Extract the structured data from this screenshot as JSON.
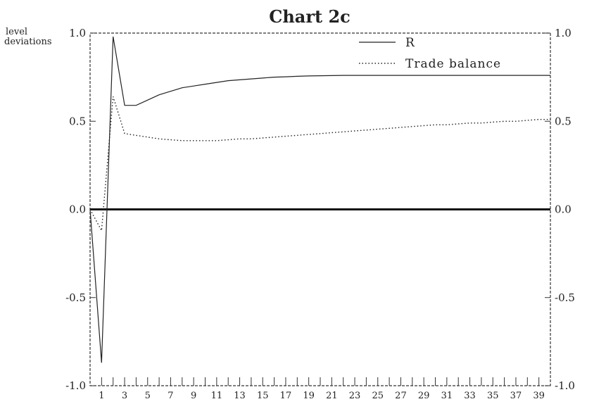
{
  "chart_data": {
    "type": "line",
    "title": "Chart 2c",
    "ylabel_lines": [
      "level",
      "deviations"
    ],
    "x": [
      0,
      1,
      2,
      3,
      4,
      5,
      6,
      7,
      8,
      9,
      10,
      11,
      12,
      13,
      14,
      15,
      16,
      17,
      18,
      19,
      20,
      21,
      22,
      23,
      24,
      25,
      26,
      27,
      28,
      29,
      30,
      31,
      32,
      33,
      34,
      35,
      36,
      37,
      38,
      39,
      40
    ],
    "x_tick_labels": [
      "1",
      "3",
      "5",
      "7",
      "9",
      "11",
      "13",
      "15",
      "17",
      "19",
      "21",
      "23",
      "25",
      "27",
      "29",
      "31",
      "33",
      "35",
      "37",
      "39"
    ],
    "xlim": [
      0,
      40
    ],
    "ylim": [
      -1.0,
      1.0
    ],
    "y_ticks_left": [
      "1.0",
      "0.5",
      "0.0",
      "-0.5",
      "-1.0"
    ],
    "y_ticks_right": [
      "1.0",
      "0.5",
      "0.0",
      "-0.5",
      "-1.0"
    ],
    "zero_line": true,
    "legend_position": "top-right",
    "series": [
      {
        "name": "R",
        "style": "solid",
        "values": [
          0.0,
          -0.87,
          0.98,
          0.59,
          0.59,
          0.62,
          0.65,
          0.67,
          0.69,
          0.7,
          0.71,
          0.72,
          0.73,
          0.735,
          0.74,
          0.745,
          0.75,
          0.752,
          0.755,
          0.757,
          0.758,
          0.759,
          0.76,
          0.76,
          0.76,
          0.76,
          0.76,
          0.76,
          0.76,
          0.76,
          0.76,
          0.76,
          0.76,
          0.76,
          0.76,
          0.76,
          0.76,
          0.76,
          0.76,
          0.76,
          0.76
        ]
      },
      {
        "name": "Trade balance",
        "style": "dotted",
        "values": [
          0.0,
          -0.12,
          0.64,
          0.43,
          0.42,
          0.41,
          0.4,
          0.395,
          0.39,
          0.39,
          0.39,
          0.39,
          0.395,
          0.4,
          0.4,
          0.405,
          0.41,
          0.415,
          0.42,
          0.425,
          0.43,
          0.435,
          0.44,
          0.445,
          0.45,
          0.455,
          0.46,
          0.465,
          0.47,
          0.475,
          0.48,
          0.48,
          0.485,
          0.49,
          0.49,
          0.495,
          0.5,
          0.5,
          0.505,
          0.51,
          0.51
        ]
      }
    ]
  }
}
